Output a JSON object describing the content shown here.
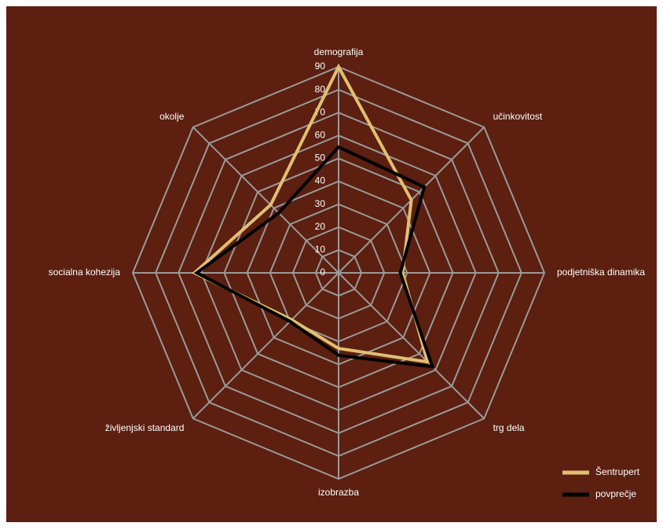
{
  "chart_data": {
    "type": "radar",
    "categories": [
      "demografija",
      "učinkovitost",
      "podjetniška dinamika",
      "trg dela",
      "izobrazba",
      "življenjski standard",
      "socialna kohezija",
      "okolje"
    ],
    "series": [
      {
        "name": "Šentrupert",
        "color": "#e0c070",
        "values": [
          90,
          45,
          28,
          55,
          33,
          29,
          63,
          42
        ]
      },
      {
        "name": "povprečje",
        "color": "#000000",
        "values": [
          55,
          53,
          27,
          58,
          36,
          30,
          62,
          37
        ]
      }
    ],
    "ylim": [
      0,
      90
    ],
    "yticks": [
      0,
      10,
      20,
      30,
      40,
      50,
      60,
      70,
      80,
      90
    ],
    "grid": true,
    "legend": "lower right",
    "background": "#5c1f10"
  }
}
